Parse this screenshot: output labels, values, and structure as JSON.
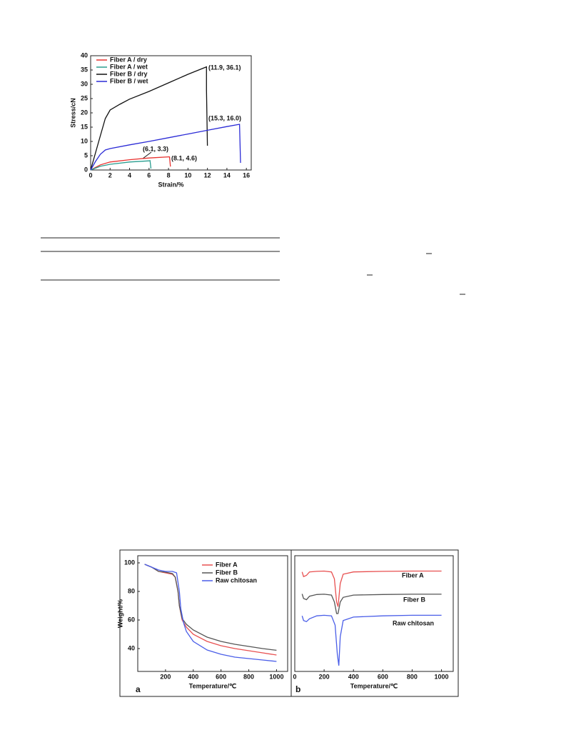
{
  "chart_data": [
    {
      "type": "line",
      "xlabel": "Strain/%",
      "ylabel": "Stress/cN",
      "xlim": [
        0,
        16.5
      ],
      "xticks": [
        0,
        2,
        4,
        6,
        8,
        10,
        12,
        14,
        16
      ],
      "ylim": [
        0,
        40
      ],
      "yticks": [
        0,
        5,
        10,
        15,
        20,
        25,
        30,
        35,
        40
      ],
      "legend": "upper left",
      "series": [
        {
          "name": "Fiber A / dry",
          "color": "#e8322f",
          "x": [
            0,
            1,
            2,
            4,
            6,
            8,
            8.1,
            8.2
          ],
          "values": [
            0,
            1.8,
            2.8,
            3.6,
            4.2,
            4.6,
            4.6,
            1.2
          ]
        },
        {
          "name": "Fiber A / wet",
          "color": "#2a9d8f",
          "x": [
            0,
            1,
            2,
            4,
            6,
            6.1,
            6.2
          ],
          "values": [
            0,
            1.3,
            2,
            2.8,
            3.2,
            3.3,
            0.5
          ]
        },
        {
          "name": "Fiber B / dry",
          "color": "#111111",
          "x": [
            0,
            0.5,
            1,
            1.5,
            2,
            3,
            4,
            6,
            8,
            10,
            11.9,
            11.9,
            12
          ],
          "values": [
            0,
            6,
            12,
            18,
            21,
            23,
            24.8,
            27.5,
            30.5,
            33.5,
            36.1,
            28,
            8.5
          ]
        },
        {
          "name": "Fiber B / wet",
          "color": "#2b2bd6",
          "x": [
            0,
            0.5,
            1,
            1.5,
            2,
            4,
            6,
            8,
            10,
            12,
            14,
            15.3,
            15.4
          ],
          "values": [
            0,
            3,
            5.5,
            7,
            7.5,
            8.8,
            10,
            11.3,
            12.6,
            13.9,
            15.2,
            16,
            2.5
          ]
        }
      ],
      "annotations": [
        "(11.9, 36.1)",
        "(15.3, 16.0)",
        "(6.1, 3.3)",
        "(8.1, 4.6)"
      ]
    },
    {
      "type": "line",
      "xlabel": "Temperature/℃",
      "ylabel": "Weight/%",
      "panel_label": "a",
      "xlim": [
        0,
        1080
      ],
      "xticks": [
        200,
        400,
        600,
        800,
        1000
      ],
      "ylim": [
        24,
        105
      ],
      "yticks": [
        40,
        60,
        80,
        100
      ],
      "legend": "upper center",
      "series": [
        {
          "name": "Fiber A",
          "color": "#e85050",
          "x": [
            50,
            100,
            150,
            200,
            250,
            270,
            290,
            300,
            320,
            350,
            400,
            500,
            600,
            700,
            800,
            900,
            1000
          ],
          "values": [
            99,
            97,
            94,
            93,
            92,
            90,
            80,
            70,
            60,
            55,
            50,
            45,
            42,
            40,
            38.5,
            37,
            35.5
          ]
        },
        {
          "name": "Fiber B",
          "color": "#555555",
          "x": [
            50,
            100,
            150,
            200,
            250,
            270,
            290,
            300,
            320,
            350,
            400,
            500,
            600,
            700,
            800,
            900,
            1000
          ],
          "values": [
            99,
            97,
            94,
            93.5,
            92.5,
            90,
            80,
            70,
            61,
            57,
            53,
            48,
            45,
            43,
            41.5,
            40,
            38.8
          ]
        },
        {
          "name": "Raw chitosan",
          "color": "#4a5ee8",
          "x": [
            50,
            100,
            150,
            200,
            250,
            280,
            300,
            310,
            330,
            350,
            400,
            500,
            600,
            700,
            800,
            900,
            1000
          ],
          "values": [
            99,
            97,
            95,
            94,
            94,
            93,
            80,
            68,
            58,
            52,
            45,
            39,
            36,
            34,
            33,
            32,
            31
          ]
        }
      ]
    },
    {
      "type": "line",
      "xlabel": "Temperature/℃",
      "panel_label": "b",
      "xlim": [
        0,
        1080
      ],
      "xticks": [
        0,
        200,
        400,
        600,
        800,
        1000
      ],
      "ylim": [
        0,
        100
      ],
      "legend": "inline",
      "series": [
        {
          "name": "Fiber A",
          "color": "#e85050",
          "x": [
            50,
            60,
            80,
            100,
            150,
            200,
            250,
            270,
            285,
            295,
            310,
            330,
            400,
            600,
            800,
            1000
          ],
          "values": [
            86,
            82,
            83,
            86,
            86.5,
            86.7,
            86,
            80,
            60,
            56,
            76,
            84,
            86,
            86.5,
            86.7,
            86.7
          ]
        },
        {
          "name": "Fiber B",
          "color": "#555555",
          "x": [
            50,
            60,
            80,
            100,
            150,
            200,
            250,
            270,
            285,
            295,
            310,
            330,
            400,
            600,
            800,
            1000
          ],
          "values": [
            67,
            63,
            62,
            65,
            66.5,
            66.7,
            66,
            60,
            50,
            50,
            60,
            64,
            66,
            66.5,
            66.7,
            66.7
          ]
        },
        {
          "name": "Raw chitosan",
          "color": "#4a5ee8",
          "x": [
            50,
            60,
            80,
            100,
            150,
            200,
            250,
            275,
            290,
            300,
            310,
            330,
            400,
            600,
            800,
            1000
          ],
          "values": [
            48,
            44,
            43,
            45.5,
            48,
            48.5,
            48,
            40,
            15,
            5,
            30,
            44,
            47,
            48,
            48.5,
            48.5
          ]
        }
      ]
    }
  ]
}
